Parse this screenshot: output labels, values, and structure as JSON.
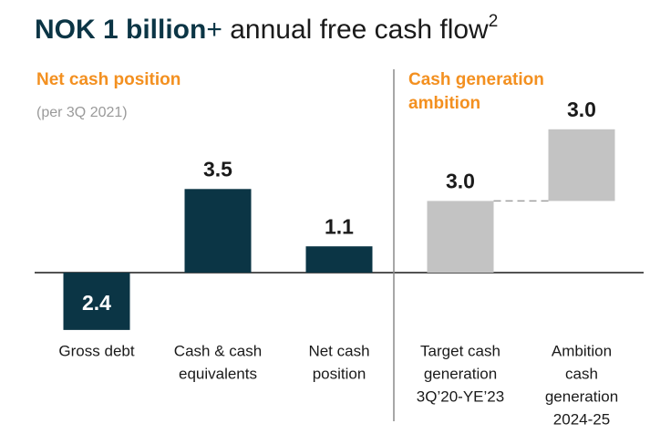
{
  "title": {
    "bold": "NOK 1 billion",
    "plus": "+",
    "rest": " annual free cash flow",
    "sup": "2"
  },
  "chart_data": [
    {
      "type": "bar",
      "title": [
        "Net cash position"
      ],
      "subtitle": "(per 3Q 2021)",
      "categories": [
        [
          "Gross debt"
        ],
        [
          "Cash & cash",
          "equivalents"
        ],
        [
          "Net cash",
          "position"
        ]
      ],
      "values": [
        -2.4,
        3.5,
        1.1
      ],
      "value_labels": [
        "2.4",
        "3.5",
        "1.1"
      ],
      "color": "#0b3545"
    },
    {
      "type": "waterfall",
      "title": [
        "Cash generation",
        "ambition"
      ],
      "categories": [
        [
          "Target cash",
          "generation",
          "3Q’20-YE’23"
        ],
        [
          "Ambition",
          "cash",
          "generation",
          "2024-25"
        ]
      ],
      "values": [
        3.0,
        3.0
      ],
      "value_labels": [
        "3.0",
        "3.0"
      ],
      "color": "#c3c3c3"
    }
  ]
}
